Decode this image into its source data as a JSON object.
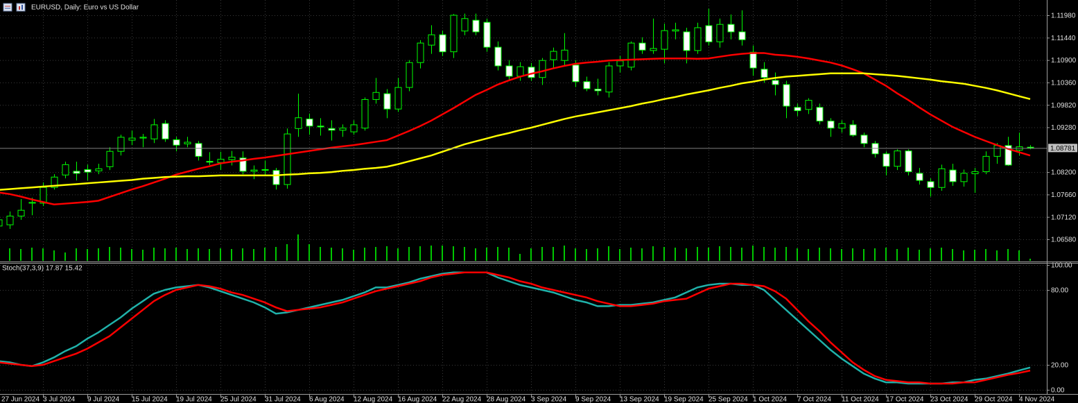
{
  "chart_data": [
    {
      "type": "candlestick",
      "title": "EURUSD, Daily:  Euro vs US Dollar",
      "categories": [
        "27 Jun 2024",
        null,
        null,
        null,
        "3 Jul 2024",
        null,
        null,
        null,
        "9 Jul 2024",
        null,
        null,
        null,
        "15 Jul 2024",
        null,
        null,
        null,
        "19 Jul 2024",
        null,
        null,
        null,
        "25 Jul 2024",
        null,
        null,
        null,
        "31 Jul 2024",
        null,
        null,
        null,
        "6 Aug 2024",
        null,
        null,
        null,
        "12 Aug 2024",
        null,
        null,
        null,
        "16 Aug 2024",
        null,
        null,
        null,
        "22 Aug 2024",
        null,
        null,
        null,
        "28 Aug 2024",
        null,
        null,
        null,
        "3 Sep 2024",
        null,
        null,
        null,
        "9 Sep 2024",
        null,
        null,
        null,
        "13 Sep 2024",
        null,
        null,
        null,
        "19 Sep 2024",
        null,
        null,
        null,
        "25 Sep 2024",
        null,
        null,
        null,
        "1 Oct 2024",
        null,
        null,
        null,
        "7 Oct 2024",
        null,
        null,
        null,
        "11 Oct 2024",
        null,
        null,
        null,
        "17 Oct 2024",
        null,
        null,
        null,
        "23 Oct 2024",
        null,
        null,
        null,
        "29 Oct 2024",
        null,
        null,
        null,
        "4 Nov 2024",
        null
      ],
      "open": [
        1.069,
        1.0693,
        1.0714,
        1.0745,
        1.0745,
        1.0783,
        1.0813,
        1.0822,
        1.0826,
        1.0823,
        1.0833,
        1.087,
        1.0897,
        1.0902,
        1.09,
        1.0937,
        1.0898,
        1.0888,
        1.0889,
        1.0846,
        1.0843,
        1.085,
        1.0854,
        1.0822,
        1.0825,
        1.0824,
        1.079,
        1.0925,
        1.0948,
        1.0931,
        1.0925,
        1.0921,
        1.0917,
        1.0926,
        1.0995,
        1.1009,
        1.0972,
        1.1024,
        1.1084,
        1.1126,
        1.1151,
        1.111,
        1.116,
        1.1186,
        1.1181,
        1.1121,
        1.1076,
        1.1051,
        1.1073,
        1.1048,
        1.1091,
        1.1089,
        1.1078,
        1.1038,
        1.102,
        1.1013,
        1.1076,
        1.1073,
        1.1131,
        1.1113,
        1.1116,
        1.116,
        1.1158,
        1.1113,
        1.1173,
        1.1134,
        1.1176,
        1.1158,
        1.1109,
        1.1068,
        1.1041,
        1.1031,
        1.0976,
        1.0971,
        1.0976,
        1.0943,
        1.0926,
        1.0934,
        1.0909,
        1.0889,
        1.0864,
        1.0834,
        1.0871,
        1.0817,
        1.0797,
        1.0783,
        1.0825,
        1.0797,
        1.0816,
        1.0821,
        1.0858,
        1.0884,
        1.0873,
        1.088
      ],
      "high": [
        1.0712,
        1.0725,
        1.0755,
        1.0758,
        1.0795,
        1.0815,
        1.0845,
        1.0845,
        1.0838,
        1.084,
        1.088,
        1.091,
        1.092,
        1.0912,
        1.0948,
        1.0945,
        1.0905,
        1.0905,
        1.0895,
        1.0868,
        1.0869,
        1.0871,
        1.087,
        1.0836,
        1.0848,
        1.083,
        1.0925,
        1.1009,
        1.0961,
        1.095,
        1.0945,
        1.0935,
        1.0945,
        1.1,
        1.1047,
        1.102,
        1.1047,
        1.109,
        1.1138,
        1.1174,
        1.1161,
        1.1201,
        1.1202,
        1.1202,
        1.119,
        1.1135,
        1.109,
        1.1085,
        1.1083,
        1.1095,
        1.112,
        1.1155,
        1.109,
        1.105,
        1.1045,
        1.1085,
        1.11,
        1.1135,
        1.1145,
        1.119,
        1.1178,
        1.118,
        1.1168,
        1.118,
        1.1214,
        1.119,
        1.12,
        1.121,
        1.1125,
        1.1085,
        1.106,
        1.104,
        1.0985,
        1.0998,
        1.0985,
        1.095,
        1.0945,
        1.0945,
        1.0915,
        1.0895,
        1.087,
        1.0875,
        1.0875,
        1.083,
        1.0805,
        1.0838,
        1.084,
        1.0826,
        1.083,
        1.087,
        1.089,
        1.0905,
        1.0915,
        1.0885
      ],
      "low": [
        1.068,
        1.0683,
        1.0705,
        1.0716,
        1.0738,
        1.0778,
        1.0805,
        1.08,
        1.08,
        1.0815,
        1.0825,
        1.086,
        1.0885,
        1.088,
        1.089,
        1.0893,
        1.087,
        1.088,
        1.0848,
        1.0837,
        1.0825,
        1.0836,
        1.0815,
        1.0803,
        1.081,
        1.0778,
        1.078,
        1.0905,
        1.091,
        1.0908,
        1.0896,
        1.0905,
        1.091,
        1.092,
        1.0985,
        1.095,
        1.0965,
        1.1015,
        1.107,
        1.1105,
        1.11,
        1.1095,
        1.115,
        1.115,
        1.111,
        1.1065,
        1.104,
        1.104,
        1.104,
        1.103,
        1.107,
        1.1075,
        1.1025,
        1.1015,
        1.1005,
        1.1,
        1.106,
        1.1065,
        1.1105,
        1.1105,
        1.1082,
        1.114,
        1.1082,
        1.1105,
        1.1125,
        1.112,
        1.114,
        1.1125,
        1.1052,
        1.1035,
        1.1005,
        1.095,
        1.0955,
        1.096,
        1.0935,
        1.0905,
        1.0915,
        1.0905,
        1.088,
        1.0855,
        1.0812,
        1.0825,
        1.0812,
        1.079,
        1.0761,
        1.0775,
        1.0787,
        1.0785,
        1.077,
        1.0815,
        1.084,
        1.0835,
        1.086,
        1.0875
      ],
      "close": [
        1.0705,
        1.0714,
        1.0728,
        1.0747,
        1.0783,
        1.0808,
        1.0838,
        1.0817,
        1.082,
        1.0828,
        1.087,
        1.0904,
        1.0902,
        1.0904,
        1.0934,
        1.09,
        1.0885,
        1.0892,
        1.0858,
        1.0844,
        1.0851,
        1.0856,
        1.0822,
        1.0825,
        1.0826,
        1.079,
        1.0912,
        1.0951,
        1.0931,
        1.0929,
        1.0921,
        1.0926,
        1.0934,
        1.0995,
        1.1012,
        1.0972,
        1.1024,
        1.1084,
        1.1131,
        1.1151,
        1.111,
        1.1198,
        1.119,
        1.1158,
        1.1121,
        1.1076,
        1.1051,
        1.1074,
        1.1048,
        1.1089,
        1.1111,
        1.1114,
        1.1038,
        1.1021,
        1.1016,
        1.1076,
        1.1088,
        1.1131,
        1.1114,
        1.1118,
        1.1161,
        1.1163,
        1.1113,
        1.1168,
        1.1134,
        1.1176,
        1.1158,
        1.1139,
        1.1071,
        1.1048,
        1.1031,
        1.0979,
        1.0968,
        1.0993,
        1.0943,
        1.0926,
        1.0937,
        1.0909,
        1.0889,
        1.0864,
        1.0834,
        1.0871,
        1.0821,
        1.08,
        1.0783,
        1.0828,
        1.0797,
        1.0817,
        1.0821,
        1.0858,
        1.0884,
        1.0837,
        1.0881,
        1.0878
      ],
      "series": [
        {
          "color": "#ff0000",
          "values": [
            1.0771,
            1.0767,
            1.0761,
            1.0754,
            1.0748,
            1.0742,
            1.0744,
            1.0746,
            1.0748,
            1.0751,
            1.076,
            1.0769,
            1.0778,
            1.0786,
            1.0795,
            1.0804,
            1.0814,
            1.0821,
            1.0828,
            1.0834,
            1.0841,
            1.0845,
            1.0848,
            1.0852,
            1.0855,
            1.0859,
            1.0863,
            1.0867,
            1.0871,
            1.0875,
            1.0879,
            1.0882,
            1.0885,
            1.0889,
            1.0893,
            1.0897,
            1.0908,
            1.0919,
            1.0931,
            1.0944,
            1.0959,
            1.0974,
            1.099,
            1.1006,
            1.1018,
            1.1031,
            1.1041,
            1.105,
            1.1057,
            1.1063,
            1.107,
            1.1076,
            1.1081,
            1.1084,
            1.1086,
            1.1089,
            1.109,
            1.1091,
            1.1092,
            1.1093,
            1.1094,
            1.1094,
            1.1094,
            1.1093,
            1.1094,
            1.1098,
            1.1102,
            1.1105,
            1.1107,
            1.1107,
            1.1103,
            1.1101,
            1.1098,
            1.1094,
            1.1089,
            1.1084,
            1.1077,
            1.1068,
            1.1058,
            1.1043,
            1.1028,
            1.101,
            1.0994,
            1.0976,
            1.0959,
            1.0944,
            1.0929,
            1.0917,
            1.0905,
            1.0895,
            1.0885,
            1.0876,
            1.0868,
            1.086
          ]
        },
        {
          "color": "#ffff00",
          "values": [
            1.0777,
            1.0779,
            1.0781,
            1.0783,
            1.0785,
            1.0787,
            1.0789,
            1.0791,
            1.0793,
            1.0795,
            1.0797,
            1.0799,
            1.0801,
            1.0804,
            1.0806,
            1.0808,
            1.0809,
            1.081,
            1.081,
            1.0811,
            1.0812,
            1.0812,
            1.0812,
            1.0812,
            1.0812,
            1.0812,
            1.0814,
            1.0815,
            1.0817,
            1.0818,
            1.082,
            1.0823,
            1.0825,
            1.0828,
            1.083,
            1.0833,
            1.0839,
            1.0846,
            1.0853,
            1.086,
            1.0869,
            1.0878,
            1.0887,
            1.0894,
            1.0901,
            1.0908,
            1.0914,
            1.0921,
            1.0927,
            1.0934,
            1.0941,
            1.0948,
            1.0954,
            1.0959,
            1.0964,
            1.0969,
            1.0974,
            1.0979,
            1.0985,
            1.099,
            1.0996,
            1.1001,
            1.1007,
            1.1012,
            1.1017,
            1.1023,
            1.1028,
            1.1034,
            1.1038,
            1.1043,
            1.1047,
            1.105,
            1.1052,
            1.1054,
            1.1056,
            1.1058,
            1.1058,
            1.1058,
            1.1058,
            1.1056,
            1.1054,
            1.1052,
            1.1049,
            1.1046,
            1.1043,
            1.1039,
            1.1036,
            1.1033,
            1.1028,
            1.1023,
            1.1017,
            1.101,
            1.1003,
            1.0996
          ]
        }
      ],
      "volume": [
        16,
        18,
        17,
        19,
        18,
        15,
        12,
        18,
        17,
        18,
        20,
        19,
        17,
        16,
        19,
        18,
        19,
        17,
        18,
        17,
        18,
        17,
        18,
        17,
        19,
        20,
        24,
        38,
        24,
        20,
        19,
        18,
        16,
        19,
        20,
        21,
        18,
        20,
        21,
        22,
        22,
        21,
        20,
        18,
        19,
        20,
        19,
        10,
        18,
        20,
        20,
        22,
        18,
        17,
        18,
        21,
        17,
        19,
        18,
        21,
        20,
        19,
        18,
        20,
        19,
        21,
        20,
        19,
        22,
        20,
        19,
        20,
        18,
        17,
        19,
        18,
        17,
        18,
        17,
        18,
        19,
        17,
        19,
        16,
        18,
        19,
        17,
        15,
        16,
        17,
        15,
        17,
        15,
        3
      ],
      "volume_color": "#00c800",
      "bull_color": "#000000",
      "bear_color": "#ffffff",
      "wick_color": "#00ff00",
      "ylim": [
        1.06045,
        1.12348
      ],
      "yticks": [
        {
          "value": 1.1198,
          "label": "1.11980"
        },
        {
          "value": 1.1144,
          "label": "1.11440"
        },
        {
          "value": 1.109,
          "label": "1.10900"
        },
        {
          "value": 1.1036,
          "label": "1.10360"
        },
        {
          "value": 1.0982,
          "label": "1.09820"
        },
        {
          "value": 1.0928,
          "label": "1.09280"
        },
        {
          "value": 1.082,
          "label": "1.08200"
        },
        {
          "value": 1.0766,
          "label": "1.07660"
        },
        {
          "value": 1.0712,
          "label": "1.07120"
        },
        {
          "value": 1.0658,
          "label": "1.06580"
        }
      ],
      "last_price": {
        "value": 1.08781,
        "label": "1.08781"
      },
      "grid": true
    },
    {
      "type": "line",
      "title": "Stoch(37,3,9) 17.87 15.42",
      "series": [
        {
          "color": "#20b2aa",
          "values": [
            23,
            22,
            20,
            19,
            22,
            26,
            31,
            35,
            41,
            46,
            52,
            58,
            65,
            71,
            77,
            80,
            82,
            83,
            84,
            82,
            79,
            76,
            73,
            70,
            66,
            61,
            62,
            64,
            66,
            68,
            70,
            72,
            75,
            78,
            82,
            82,
            84,
            86,
            89,
            91,
            93,
            94,
            94,
            94,
            94,
            90,
            87,
            84,
            82,
            80,
            78,
            75,
            72,
            70,
            67,
            67,
            68,
            68,
            69,
            70,
            72,
            74,
            78,
            82,
            84,
            85,
            85,
            84,
            84,
            80,
            72,
            64,
            56,
            48,
            40,
            32,
            25,
            19,
            13,
            9,
            6,
            6,
            5,
            5,
            5,
            5,
            6,
            6,
            8,
            9,
            11,
            13,
            15.5,
            17.87
          ]
        },
        {
          "color": "#ff0000",
          "values": [
            22,
            21,
            20,
            19,
            20,
            23,
            26,
            29,
            33,
            38,
            43,
            50,
            57,
            64,
            71,
            76,
            80,
            82,
            84,
            83,
            81,
            78,
            76,
            73,
            70,
            66,
            63,
            64,
            65,
            66,
            68,
            70,
            73,
            76,
            79,
            81,
            83,
            85,
            87,
            90,
            92,
            93,
            94,
            94,
            94,
            92,
            90,
            87,
            85,
            82,
            80,
            78,
            76,
            74,
            71,
            69,
            67,
            67,
            68,
            69,
            71,
            72,
            73,
            77,
            81,
            83,
            85,
            85,
            84,
            83,
            79,
            73,
            64,
            55,
            47,
            38,
            30,
            22,
            16,
            11,
            8,
            7,
            6,
            6,
            5,
            5,
            5,
            6,
            6,
            8,
            10,
            12,
            13.5,
            15.42
          ]
        }
      ],
      "ylim": [
        0,
        100
      ],
      "yticks": [
        {
          "value": 0,
          "label": "0.00"
        },
        {
          "value": 20,
          "label": "20.00"
        },
        {
          "value": 80,
          "label": "80.00"
        },
        {
          "value": 100,
          "label": "100.00"
        }
      ],
      "grid": true
    }
  ]
}
